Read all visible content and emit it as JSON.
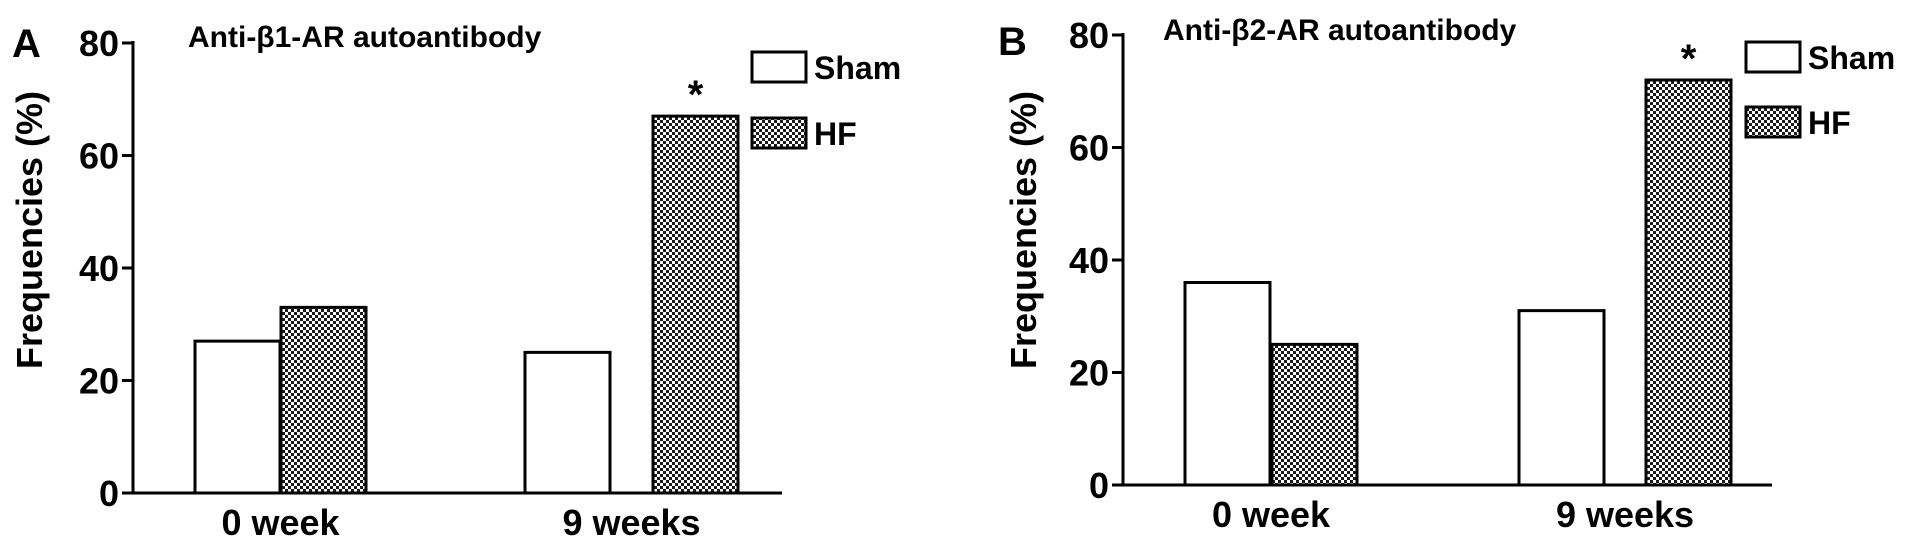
{
  "chart_data": [
    {
      "panel_label": "A",
      "type": "bar",
      "title": "Anti-β1-AR autoantibody",
      "ylabel": "Frequencies (%)",
      "xlabel": "",
      "categories": [
        "0 week",
        "9 weeks"
      ],
      "series": [
        {
          "name": "Sham",
          "values": [
            27,
            25
          ],
          "fill": "#ffffff"
        },
        {
          "name": "HF",
          "values": [
            33,
            67
          ],
          "fill": "checker"
        }
      ],
      "ylim": [
        0,
        80
      ],
      "yticks": [
        0,
        20,
        40,
        60,
        80
      ],
      "annotations": [
        {
          "text": "*",
          "category": "9 weeks",
          "series": "HF"
        }
      ],
      "grid": false,
      "legend_position": "top-right"
    },
    {
      "panel_label": "B",
      "type": "bar",
      "title": "Anti-β2-AR autoantibody",
      "ylabel": "Frequencies (%)",
      "xlabel": "",
      "categories": [
        "0 week",
        "9 weeks"
      ],
      "series": [
        {
          "name": "Sham",
          "values": [
            36,
            31
          ],
          "fill": "#ffffff"
        },
        {
          "name": "HF",
          "values": [
            25,
            72
          ],
          "fill": "checker"
        }
      ],
      "ylim": [
        0,
        80
      ],
      "yticks": [
        0,
        20,
        40,
        60,
        80
      ],
      "annotations": [
        {
          "text": "*",
          "category": "9 weeks",
          "series": "HF"
        }
      ],
      "grid": false,
      "legend_position": "top-right"
    }
  ]
}
